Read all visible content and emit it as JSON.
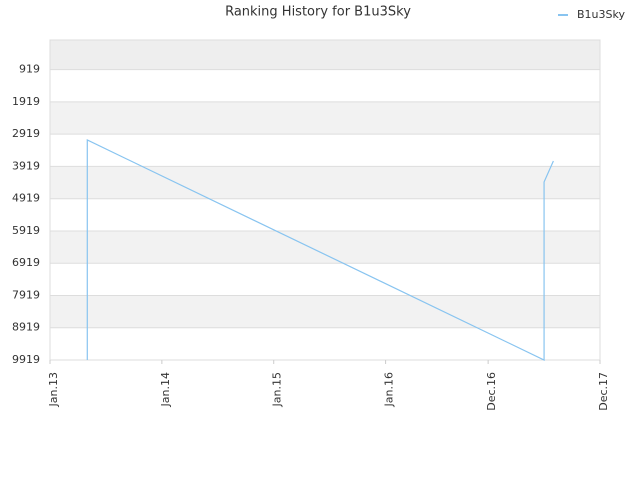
{
  "chart_data": {
    "type": "line",
    "title": "Ranking History for B1u3Sky",
    "x": [
      "2013-05",
      "2013-05",
      "2017-06",
      "2017-06",
      "2017-07"
    ],
    "series": [
      {
        "name": "B1u3Sky",
        "color": "#88c4f0",
        "values": [
          9919,
          3100,
          9919,
          4400,
          3750
        ]
      }
    ],
    "xlim": [
      "2013-01",
      "2017-12"
    ],
    "xticks": [
      {
        "value": "2013-01",
        "label": "Jan.13"
      },
      {
        "value": "2014-01",
        "label": "Jan.14"
      },
      {
        "value": "2015-01",
        "label": "Jan.15"
      },
      {
        "value": "2016-01",
        "label": "Jan.16"
      },
      {
        "value": "2016-12",
        "label": "Dec.16"
      },
      {
        "value": "2017-12",
        "label": "Dec.17"
      }
    ],
    "ylim": [
      9919,
      0
    ],
    "yticks": [
      919,
      1919,
      2919,
      3919,
      4919,
      5919,
      6919,
      7919,
      8919,
      9919
    ],
    "grid": true,
    "legend": "top-right"
  }
}
